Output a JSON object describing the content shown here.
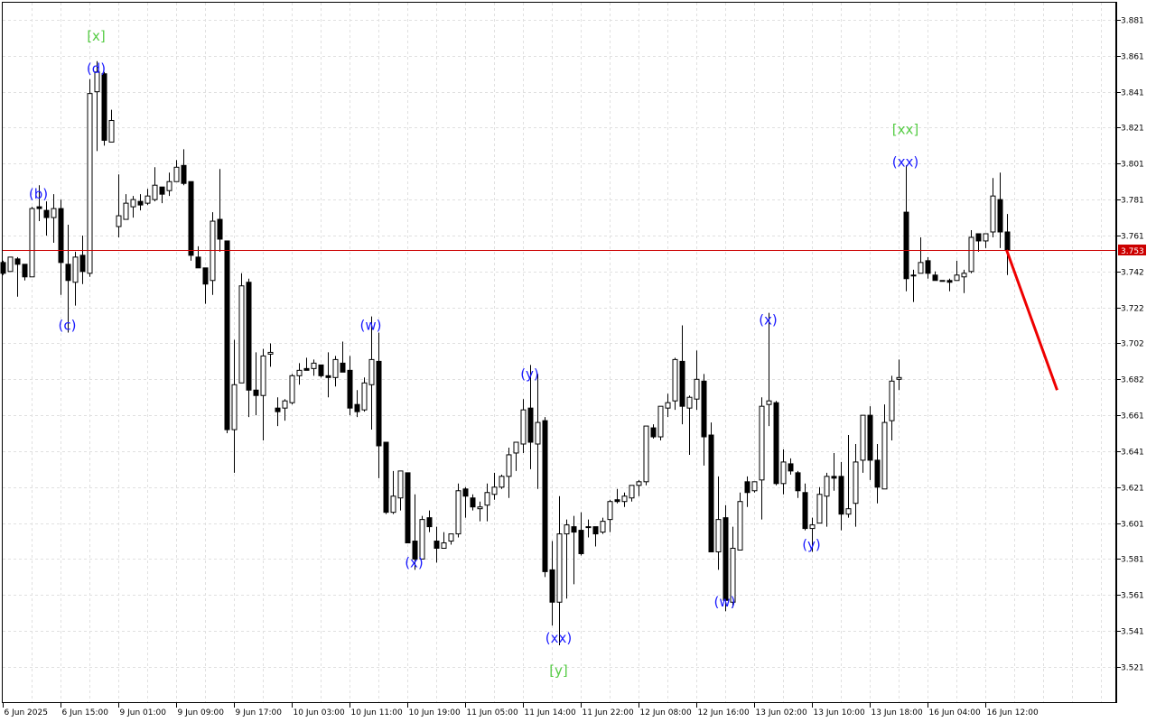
{
  "chart_data": {
    "type": "candlestick",
    "title": "",
    "xlabel": "",
    "ylabel": "",
    "ylim": [
      3.5066,
      3.892
    ],
    "grid": true,
    "y_ticks": [
      "3.881",
      "3.861",
      "3.841",
      "3.821",
      "3.801",
      "3.781",
      "3.761",
      "3.742",
      "3.722",
      "3.702",
      "3.682",
      "3.661",
      "3.641",
      "3.621",
      "3.601",
      "3.581",
      "3.561",
      "3.541",
      "3.521"
    ],
    "x_ticks": [
      {
        "index": 0,
        "label": "6 Jun 2025"
      },
      {
        "index": 8,
        "label": "6 Jun 15:00"
      },
      {
        "index": 16,
        "label": "9 Jun 01:00"
      },
      {
        "index": 24,
        "label": "9 Jun 09:00"
      },
      {
        "index": 32,
        "label": "9 Jun 17:00"
      },
      {
        "index": 40,
        "label": "10 Jun 03:00"
      },
      {
        "index": 48,
        "label": "10 Jun 11:00"
      },
      {
        "index": 56,
        "label": "10 Jun 19:00"
      },
      {
        "index": 64,
        "label": "11 Jun 05:00"
      },
      {
        "index": 72,
        "label": "11 Jun 14:00"
      },
      {
        "index": 80,
        "label": "11 Jun 22:00"
      },
      {
        "index": 88,
        "label": "12 Jun 08:00"
      },
      {
        "index": 96,
        "label": "12 Jun 16:00"
      },
      {
        "index": 104,
        "label": "13 Jun 02:00"
      },
      {
        "index": 112,
        "label": "13 Jun 10:00"
      },
      {
        "index": 120,
        "label": "13 Jun 18:00"
      },
      {
        "index": 128,
        "label": "16 Jun 04:00"
      },
      {
        "index": 136,
        "label": "16 Jun 12:00"
      }
    ],
    "current_price": {
      "label": "3.753",
      "value": 3.753,
      "color": "#cc0000"
    },
    "ohlc": [
      [
        3.746,
        3.747,
        3.739,
        3.74
      ],
      [
        3.741,
        3.749,
        3.741,
        3.749
      ],
      [
        3.748,
        3.749,
        3.727,
        3.745
      ],
      [
        3.745,
        3.745,
        3.736,
        3.738
      ],
      [
        3.738,
        3.777,
        3.738,
        3.776
      ],
      [
        3.777,
        3.789,
        3.769,
        3.776
      ],
      [
        3.775,
        3.78,
        3.761,
        3.771
      ],
      [
        3.771,
        3.784,
        3.757,
        3.776
      ],
      [
        3.776,
        3.781,
        3.728,
        3.746
      ],
      [
        3.745,
        3.767,
        3.707,
        3.736
      ],
      [
        3.735,
        3.752,
        3.722,
        3.749
      ],
      [
        3.75,
        3.761,
        3.734,
        3.741
      ],
      [
        3.74,
        3.848,
        3.738,
        3.84
      ],
      [
        3.841,
        3.858,
        3.808,
        3.852
      ],
      [
        3.851,
        3.852,
        3.811,
        3.814
      ],
      [
        3.813,
        3.831,
        3.813,
        3.825
      ],
      [
        3.766,
        3.795,
        3.76,
        3.772
      ],
      [
        3.77,
        3.784,
        3.77,
        3.779
      ],
      [
        3.777,
        3.783,
        3.771,
        3.781
      ],
      [
        3.78,
        3.784,
        3.775,
        3.778
      ],
      [
        3.779,
        3.787,
        3.778,
        3.783
      ],
      [
        3.781,
        3.799,
        3.78,
        3.789
      ],
      [
        3.788,
        3.788,
        3.779,
        3.784
      ],
      [
        3.786,
        3.796,
        3.783,
        3.791
      ],
      [
        3.791,
        3.803,
        3.791,
        3.799
      ],
      [
        3.8,
        3.809,
        3.789,
        3.79
      ],
      [
        3.791,
        3.791,
        3.747,
        3.75
      ],
      [
        3.749,
        3.755,
        3.743,
        3.743
      ],
      [
        3.743,
        3.743,
        3.723,
        3.734
      ],
      [
        3.736,
        3.774,
        3.728,
        3.769
      ],
      [
        3.77,
        3.798,
        3.752,
        3.759
      ],
      [
        3.758,
        3.758,
        3.651,
        3.653
      ],
      [
        3.653,
        3.703,
        3.629,
        3.678
      ],
      [
        3.679,
        3.74,
        3.679,
        3.733
      ],
      [
        3.735,
        3.737,
        3.66,
        3.675
      ],
      [
        3.675,
        3.696,
        3.661,
        3.672
      ],
      [
        3.672,
        3.698,
        3.647,
        3.694
      ],
      [
        3.695,
        3.701,
        3.688,
        3.696
      ],
      [
        3.665,
        3.671,
        3.655,
        3.663
      ],
      [
        3.665,
        3.67,
        3.658,
        3.669
      ],
      [
        3.668,
        3.684,
        3.667,
        3.683
      ],
      [
        3.683,
        3.69,
        3.678,
        3.686
      ],
      [
        3.687,
        3.693,
        3.686,
        3.686
      ],
      [
        3.687,
        3.692,
        3.683,
        3.69
      ],
      [
        3.689,
        3.689,
        3.682,
        3.683
      ],
      [
        3.683,
        3.696,
        3.671,
        3.682
      ],
      [
        3.682,
        3.694,
        3.677,
        3.692
      ],
      [
        3.69,
        3.702,
        3.685,
        3.685
      ],
      [
        3.686,
        3.694,
        3.661,
        3.665
      ],
      [
        3.667,
        3.675,
        3.66,
        3.663
      ],
      [
        3.664,
        3.682,
        3.663,
        3.679
      ],
      [
        3.678,
        3.716,
        3.653,
        3.692
      ],
      [
        3.691,
        3.707,
        3.626,
        3.644
      ],
      [
        3.646,
        3.646,
        3.606,
        3.607
      ],
      [
        3.607,
        3.63,
        3.606,
        3.616
      ],
      [
        3.615,
        3.63,
        3.608,
        3.63
      ],
      [
        3.629,
        3.629,
        3.59,
        3.59
      ],
      [
        3.591,
        3.617,
        3.575,
        3.581
      ],
      [
        3.581,
        3.605,
        3.581,
        3.603
      ],
      [
        3.604,
        3.608,
        3.596,
        3.599
      ],
      [
        3.591,
        3.599,
        3.579,
        3.587
      ],
      [
        3.587,
        3.596,
        3.587,
        3.59
      ],
      [
        3.591,
        3.595,
        3.589,
        3.595
      ],
      [
        3.595,
        3.623,
        3.593,
        3.619
      ],
      [
        3.62,
        3.621,
        3.604,
        3.616
      ],
      [
        3.615,
        3.617,
        3.608,
        3.61
      ],
      [
        3.609,
        3.613,
        3.602,
        3.61
      ],
      [
        3.611,
        3.623,
        3.602,
        3.618
      ],
      [
        3.617,
        3.629,
        3.614,
        3.621
      ],
      [
        3.621,
        3.628,
        3.62,
        3.627
      ],
      [
        3.627,
        3.643,
        3.615,
        3.639
      ],
      [
        3.64,
        3.646,
        3.63,
        3.646
      ],
      [
        3.645,
        3.67,
        3.64,
        3.664
      ],
      [
        3.665,
        3.689,
        3.631,
        3.646
      ],
      [
        3.645,
        3.684,
        3.62,
        3.657
      ],
      [
        3.658,
        3.66,
        3.571,
        3.574
      ],
      [
        3.575,
        3.591,
        3.544,
        3.557
      ],
      [
        3.557,
        3.616,
        3.533,
        3.595
      ],
      [
        3.595,
        3.603,
        3.559,
        3.6
      ],
      [
        3.599,
        3.605,
        3.567,
        3.596
      ],
      [
        3.597,
        3.607,
        3.583,
        3.584
      ],
      [
        3.599,
        3.603,
        3.593,
        3.599
      ],
      [
        3.599,
        3.599,
        3.588,
        3.595
      ],
      [
        3.596,
        3.604,
        3.595,
        3.602
      ],
      [
        3.603,
        3.614,
        3.596,
        3.613
      ],
      [
        3.614,
        3.62,
        3.612,
        3.613
      ],
      [
        3.613,
        3.618,
        3.61,
        3.616
      ],
      [
        3.615,
        3.622,
        3.613,
        3.622
      ],
      [
        3.622,
        3.625,
        3.616,
        3.624
      ],
      [
        3.624,
        3.655,
        3.622,
        3.655
      ],
      [
        3.654,
        3.656,
        3.648,
        3.649
      ],
      [
        3.649,
        3.666,
        3.647,
        3.666
      ],
      [
        3.665,
        3.673,
        3.66,
        3.668
      ],
      [
        3.669,
        3.693,
        3.664,
        3.692
      ],
      [
        3.691,
        3.711,
        3.656,
        3.666
      ],
      [
        3.665,
        3.672,
        3.639,
        3.671
      ],
      [
        3.67,
        3.697,
        3.664,
        3.681
      ],
      [
        3.68,
        3.684,
        3.633,
        3.649
      ],
      [
        3.65,
        3.657,
        3.585,
        3.585
      ],
      [
        3.585,
        3.627,
        3.575,
        3.603
      ],
      [
        3.604,
        3.611,
        3.552,
        3.558
      ],
      [
        3.557,
        3.599,
        3.554,
        3.587
      ],
      [
        3.586,
        3.618,
        3.586,
        3.613
      ],
      [
        3.624,
        3.627,
        3.61,
        3.618
      ],
      [
        3.619,
        3.624,
        3.618,
        3.624
      ],
      [
        3.625,
        3.671,
        3.603,
        3.666
      ],
      [
        3.667,
        3.718,
        3.655,
        3.669
      ],
      [
        3.668,
        3.669,
        3.622,
        3.623
      ],
      [
        3.623,
        3.642,
        3.617,
        3.635
      ],
      [
        3.634,
        3.637,
        3.628,
        3.63
      ],
      [
        3.629,
        3.63,
        3.615,
        3.619
      ],
      [
        3.618,
        3.623,
        3.597,
        3.598
      ],
      [
        3.598,
        3.604,
        3.585,
        3.6
      ],
      [
        3.601,
        3.621,
        3.601,
        3.617
      ],
      [
        3.616,
        3.629,
        3.599,
        3.627
      ],
      [
        3.627,
        3.64,
        3.619,
        3.626
      ],
      [
        3.627,
        3.635,
        3.597,
        3.606
      ],
      [
        3.606,
        3.65,
        3.604,
        3.609
      ],
      [
        3.612,
        3.645,
        3.599,
        3.635
      ],
      [
        3.636,
        3.661,
        3.629,
        3.661
      ],
      [
        3.661,
        3.666,
        3.625,
        3.636
      ],
      [
        3.636,
        3.645,
        3.612,
        3.621
      ],
      [
        3.62,
        3.667,
        3.62,
        3.657
      ],
      [
        3.658,
        3.683,
        3.647,
        3.68
      ],
      [
        3.681,
        3.692,
        3.675,
        3.682
      ],
      [
        3.774,
        3.8,
        3.73,
        3.737
      ],
      [
        3.739,
        3.742,
        3.724,
        3.739
      ],
      [
        3.74,
        3.76,
        3.74,
        3.746
      ],
      [
        3.747,
        3.749,
        3.737,
        3.74
      ],
      [
        3.739,
        3.741,
        3.736,
        3.736
      ],
      [
        3.736,
        3.736,
        3.736,
        3.736
      ],
      [
        3.736,
        3.737,
        3.73,
        3.735
      ],
      [
        3.736,
        3.747,
        3.736,
        3.739
      ],
      [
        3.738,
        3.742,
        3.729,
        3.74
      ],
      [
        3.741,
        3.764,
        3.74,
        3.76
      ],
      [
        3.762,
        3.762,
        3.752,
        3.758
      ],
      [
        3.758,
        3.762,
        3.754,
        3.762
      ],
      [
        3.763,
        3.793,
        3.76,
        3.783
      ],
      [
        3.781,
        3.796,
        3.754,
        3.763
      ],
      [
        3.763,
        3.773,
        3.739,
        3.753
      ]
    ],
    "wave_labels": [
      {
        "text": "[x]",
        "index": 13,
        "price": 3.872,
        "color": "#55cc44"
      },
      {
        "text": "(d)",
        "index": 13,
        "price": 3.854,
        "color": "#1a1aff"
      },
      {
        "text": "(b)",
        "index": 5,
        "price": 3.784,
        "color": "#1a1aff"
      },
      {
        "text": "(c)",
        "index": 9,
        "price": 3.711,
        "color": "#1a1aff"
      },
      {
        "text": "(w)",
        "index": 51,
        "price": 3.711,
        "color": "#1a1aff"
      },
      {
        "text": "(x)",
        "index": 57,
        "price": 3.579,
        "color": "#1a1aff"
      },
      {
        "text": "(y)",
        "index": 73,
        "price": 3.684,
        "color": "#1a1aff"
      },
      {
        "text": "(xx)",
        "index": 77,
        "price": 3.537,
        "color": "#1a1aff"
      },
      {
        "text": "[y]",
        "index": 77,
        "price": 3.519,
        "color": "#55cc44"
      },
      {
        "text": "(w)",
        "index": 100,
        "price": 3.557,
        "color": "#1a1aff"
      },
      {
        "text": "(x)",
        "index": 106,
        "price": 3.714,
        "color": "#1a1aff"
      },
      {
        "text": "(y)",
        "index": 112,
        "price": 3.589,
        "color": "#1a1aff"
      },
      {
        "text": "(xx)",
        "index": 125,
        "price": 3.802,
        "color": "#1a1aff"
      },
      {
        "text": "[xx]",
        "index": 125,
        "price": 3.82,
        "color": "#55cc44"
      }
    ],
    "forecast_line": {
      "from": {
        "index": 139,
        "price": 3.753
      },
      "to": {
        "index": 146,
        "price": 3.675
      },
      "color": "#ee0000"
    },
    "colors": {
      "bull_body": "#ffffff",
      "bear_body": "#000000",
      "wick": "#000000",
      "grid": "#e0e0e0",
      "price_line": "#cc0000"
    }
  }
}
